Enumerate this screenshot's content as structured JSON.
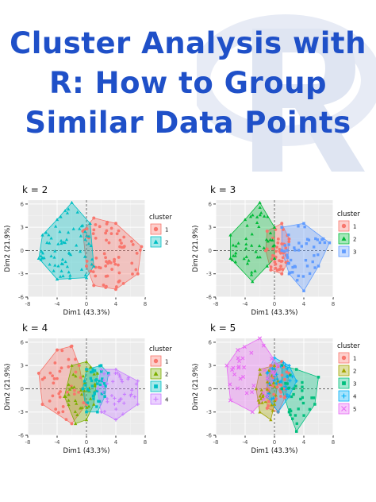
{
  "page": {
    "title_lines": [
      "Cluster Analysis with",
      "R: How to Group",
      "Similar Data Points"
    ]
  },
  "colors": {
    "title": "#1f50c8",
    "cluster_palette_2": [
      "#F8766D",
      "#00BFC4"
    ],
    "cluster_palette_3": [
      "#F8766D",
      "#00BA38",
      "#619CFF"
    ],
    "cluster_palette_4": [
      "#F8766D",
      "#7CAE00",
      "#00BFC4",
      "#C77CFF"
    ],
    "cluster_palette_5": [
      "#F8766D",
      "#A3A500",
      "#00BF7D",
      "#00B0F6",
      "#E76BF3"
    ]
  },
  "chart_data": [
    {
      "type": "scatter",
      "title": "k = 2",
      "xlabel": "Dim1 (43.3%)",
      "ylabel": "Dim2 (21.9%)",
      "xlim": [
        -8,
        8
      ],
      "ylim": [
        -6,
        6.5
      ],
      "xticks": [
        -8,
        -4,
        0,
        4,
        8
      ],
      "yticks": [
        -6,
        -3,
        0,
        3,
        6
      ],
      "x_tick_labels": [
        "-8",
        "-4",
        "0",
        "4",
        "8"
      ],
      "y_tick_labels": [
        "-6",
        "-3",
        "0",
        "3",
        "6"
      ],
      "grid": true,
      "legend_title": "cluster",
      "legend_position": "right",
      "series": [
        {
          "name": "1",
          "shape": "circle",
          "hull": [
            [
              -0.5,
              2.5
            ],
            [
              1,
              4.2
            ],
            [
              4,
              3.5
            ],
            [
              7.5,
              0.5
            ],
            [
              7,
              -3
            ],
            [
              4,
              -5
            ],
            [
              1,
              -4.5
            ],
            [
              0,
              -2
            ]
          ]
        },
        {
          "name": "2",
          "shape": "triangle",
          "hull": [
            [
              -6,
              2
            ],
            [
              -4,
              4
            ],
            [
              -2,
              6.2
            ],
            [
              0.5,
              3.5
            ],
            [
              1,
              -2
            ],
            [
              0,
              -3.5
            ],
            [
              -4,
              -3.7
            ],
            [
              -6.5,
              -1
            ]
          ]
        }
      ]
    },
    {
      "type": "scatter",
      "title": "k = 3",
      "xlabel": "Dim1 (43.3%)",
      "ylabel": "Dim2 (21.9%)",
      "xlim": [
        -8,
        8
      ],
      "ylim": [
        -6,
        6.5
      ],
      "xticks": [
        -8,
        -4,
        0,
        4,
        8
      ],
      "yticks": [
        -6,
        -3,
        0,
        3,
        6
      ],
      "x_tick_labels": [
        "-8",
        "-4",
        "0",
        "4",
        "8"
      ],
      "y_tick_labels": [
        "-6",
        "-3",
        "0",
        "3",
        "6"
      ],
      "grid": true,
      "legend_title": "cluster",
      "legend_position": "right",
      "series": [
        {
          "name": "1",
          "shape": "circle",
          "hull": [
            [
              -1,
              2.5
            ],
            [
              1,
              3.5
            ],
            [
              2,
              1.5
            ],
            [
              1.8,
              -1.5
            ],
            [
              1,
              -3
            ],
            [
              -0.5,
              -2.5
            ],
            [
              -1.2,
              0
            ]
          ]
        },
        {
          "name": "2",
          "shape": "triangle",
          "hull": [
            [
              -6,
              2
            ],
            [
              -4,
              4
            ],
            [
              -2,
              6.2
            ],
            [
              0,
              3
            ],
            [
              0,
              -1
            ],
            [
              -1,
              -2
            ],
            [
              -3,
              -4
            ],
            [
              -6,
              -1
            ]
          ]
        },
        {
          "name": "3",
          "shape": "square",
          "hull": [
            [
              1,
              3
            ],
            [
              4,
              3.5
            ],
            [
              7.5,
              1
            ],
            [
              6,
              -2
            ],
            [
              4,
              -5.2
            ],
            [
              2,
              -3
            ],
            [
              1,
              0
            ]
          ]
        }
      ]
    },
    {
      "type": "scatter",
      "title": "k = 4",
      "xlabel": "Dim1 (43.3%)",
      "ylabel": "Dim2 (21.9%)",
      "xlim": [
        -8,
        8
      ],
      "ylim": [
        -6,
        6.5
      ],
      "xticks": [
        -8,
        -4,
        0,
        4,
        8
      ],
      "yticks": [
        -6,
        -3,
        0,
        3,
        6
      ],
      "x_tick_labels": [
        "-8",
        "-4",
        "0",
        "4",
        "8"
      ],
      "y_tick_labels": [
        "-6",
        "-3",
        "0",
        "3",
        "6"
      ],
      "grid": true,
      "legend_title": "cluster",
      "legend_position": "right",
      "series": [
        {
          "name": "1",
          "shape": "circle",
          "hull": [
            [
              -6.5,
              2
            ],
            [
              -4,
              5
            ],
            [
              -2,
              5.5
            ],
            [
              -1,
              3
            ],
            [
              0,
              -2
            ],
            [
              -2,
              -4.5
            ],
            [
              -6,
              -2
            ]
          ]
        },
        {
          "name": "2",
          "shape": "triangle",
          "hull": [
            [
              -2,
              3
            ],
            [
              0,
              3.5
            ],
            [
              1.5,
              2
            ],
            [
              1,
              -2
            ],
            [
              0,
              -4
            ],
            [
              -1.5,
              -4.5
            ],
            [
              -3,
              -1
            ]
          ]
        },
        {
          "name": "3",
          "shape": "square",
          "hull": [
            [
              0,
              2.5
            ],
            [
              2,
              3
            ],
            [
              3,
              2
            ],
            [
              2.5,
              -1
            ],
            [
              1.5,
              -3
            ],
            [
              0,
              -3
            ],
            [
              -0.5,
              0
            ]
          ]
        },
        {
          "name": "4",
          "shape": "cross",
          "hull": [
            [
              2,
              2.5
            ],
            [
              4,
              2.5
            ],
            [
              7,
              1
            ],
            [
              7,
              -2
            ],
            [
              4,
              -4
            ],
            [
              2,
              -3
            ],
            [
              1.5,
              0
            ]
          ]
        }
      ]
    },
    {
      "type": "scatter",
      "title": "k = 5",
      "xlabel": "Dim1 (43.3%)",
      "ylabel": "Dim2 (21.9%)",
      "xlim": [
        -8,
        8
      ],
      "ylim": [
        -6,
        6.5
      ],
      "xticks": [
        -8,
        -4,
        0,
        4,
        8
      ],
      "yticks": [
        -6,
        -3,
        0,
        3,
        6
      ],
      "x_tick_labels": [
        "-8",
        "-4",
        "0",
        "4",
        "8"
      ],
      "y_tick_labels": [
        "-6",
        "-3",
        "0",
        "3",
        "6"
      ],
      "grid": true,
      "legend_title": "cluster",
      "legend_position": "right",
      "series": [
        {
          "name": "1",
          "shape": "circle",
          "hull": [
            [
              -0.5,
              3
            ],
            [
              1,
              3.5
            ],
            [
              2,
              2
            ],
            [
              1.5,
              -1
            ],
            [
              0.5,
              -3
            ],
            [
              -1,
              -2.5
            ],
            [
              -1,
              0
            ]
          ]
        },
        {
          "name": "2",
          "shape": "triangle",
          "hull": [
            [
              -2,
              2.5
            ],
            [
              0,
              3
            ],
            [
              0.5,
              1
            ],
            [
              0,
              -2
            ],
            [
              -0.5,
              -4
            ],
            [
              -2,
              -3
            ],
            [
              -2.5,
              0
            ]
          ]
        },
        {
          "name": "3",
          "shape": "square",
          "hull": [
            [
              1,
              3
            ],
            [
              3,
              2.5
            ],
            [
              6,
              1.5
            ],
            [
              5.5,
              -2
            ],
            [
              3,
              -5.5
            ],
            [
              2,
              -3
            ],
            [
              1,
              0
            ]
          ]
        },
        {
          "name": "4",
          "shape": "cross",
          "hull": [
            [
              0,
              4
            ],
            [
              2,
              3
            ],
            [
              3,
              1
            ],
            [
              2,
              -1
            ],
            [
              0.5,
              -3
            ],
            [
              -1,
              -1
            ],
            [
              -1,
              2
            ]
          ]
        },
        {
          "name": "5",
          "shape": "x",
          "hull": [
            [
              -6.5,
              3
            ],
            [
              -5,
              5
            ],
            [
              -2,
              6.5
            ],
            [
              0.5,
              3
            ],
            [
              -1,
              -1
            ],
            [
              -3,
              -3
            ],
            [
              -6,
              -1.5
            ]
          ]
        }
      ]
    }
  ]
}
